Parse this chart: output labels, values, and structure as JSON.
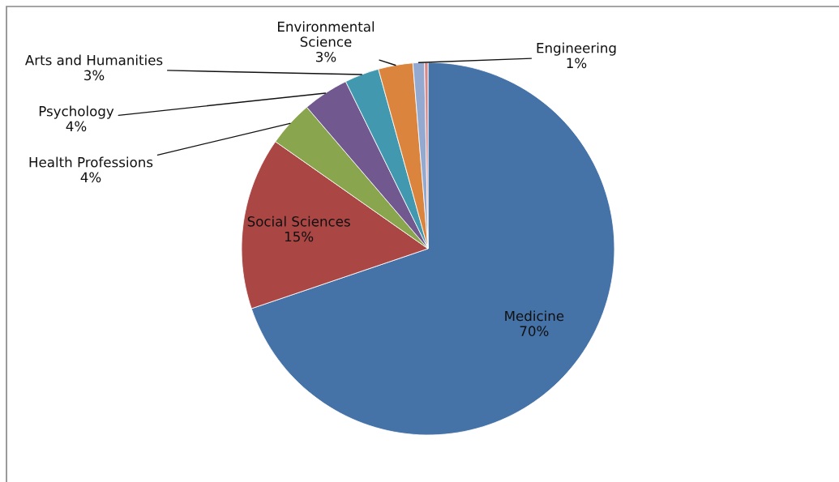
{
  "chart_data": {
    "type": "pie",
    "categories": [
      "Medicine",
      "Social Sciences",
      "Health Professions",
      "Psychology",
      "Arts and Humanities",
      "Environmental Science",
      "Engineering",
      null
    ],
    "values": [
      70,
      15,
      4,
      4,
      3,
      3,
      1,
      0.3
    ],
    "value_labels": [
      "70%",
      "15%",
      "4%",
      "4%",
      "3%",
      "3%",
      "1%",
      null
    ],
    "colors": [
      "#4572a7",
      "#aa4643",
      "#89a54e",
      "#71588f",
      "#4198af",
      "#db843d",
      "#93a9cf",
      "#d9888a"
    ]
  }
}
